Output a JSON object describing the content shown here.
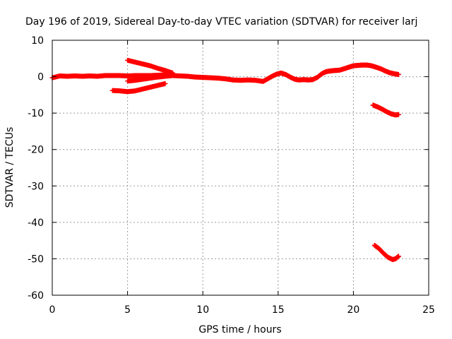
{
  "chart_data": {
    "type": "scatter",
    "title": "Day 196 of 2019, Sidereal Day-to-day VTEC variation (SDTVAR) for receiver larj",
    "xlabel": "GPS time / hours",
    "ylabel": "SDTVAR / TECUs",
    "xlim": [
      0,
      25
    ],
    "ylim": [
      -60,
      10
    ],
    "xticks": [
      0,
      5,
      10,
      15,
      20,
      25
    ],
    "yticks": [
      10,
      0,
      -10,
      -20,
      -30,
      -40,
      -50,
      -60
    ],
    "grid": true,
    "marker": "+",
    "color": "#ff0000",
    "series": [
      {
        "x": [
          0.0,
          0.5,
          1.0,
          1.5,
          2.0,
          2.5,
          3.0,
          3.5,
          4.0,
          4.5,
          5.0,
          5.5,
          6.0,
          6.5,
          7.0,
          7.5,
          8.0,
          8.5,
          9.0,
          9.5,
          10.0,
          10.5,
          11.0,
          11.5,
          12.0,
          12.5,
          13.0,
          13.5,
          14.0,
          14.3,
          14.6,
          14.9,
          15.2,
          15.5,
          15.8,
          16.1,
          16.4,
          16.7,
          17.0,
          17.3,
          17.6,
          17.9,
          18.2,
          18.5,
          18.8,
          19.1,
          19.4,
          19.7,
          20.0,
          20.3,
          20.6,
          20.9,
          21.2,
          21.5,
          21.8,
          22.1,
          22.4,
          22.7,
          23.0
        ],
        "y": [
          -0.3,
          0.2,
          0.1,
          0.2,
          0.1,
          0.2,
          0.1,
          0.3,
          0.3,
          0.3,
          0.2,
          0.3,
          0.3,
          0.3,
          0.4,
          0.5,
          0.3,
          0.2,
          0.1,
          -0.1,
          -0.2,
          -0.3,
          -0.4,
          -0.6,
          -0.9,
          -1.0,
          -0.9,
          -1.0,
          -1.3,
          -0.6,
          0.1,
          0.7,
          1.0,
          0.6,
          -0.1,
          -0.7,
          -0.9,
          -0.8,
          -0.9,
          -0.8,
          -0.2,
          0.8,
          1.4,
          1.6,
          1.7,
          1.8,
          2.2,
          2.6,
          3.0,
          3.1,
          3.2,
          3.2,
          3.0,
          2.6,
          2.2,
          1.6,
          1.1,
          0.8,
          0.6
        ]
      },
      {
        "x": [
          5.0,
          5.5,
          6.0,
          6.5,
          7.0,
          7.5,
          8.0
        ],
        "y": [
          4.5,
          4.0,
          3.5,
          3.0,
          2.3,
          1.7,
          1.0
        ]
      },
      {
        "x": [
          4.0,
          4.5,
          5.0,
          5.5,
          6.0,
          6.5,
          7.0,
          7.5
        ],
        "y": [
          -3.8,
          -3.9,
          -4.1,
          -3.9,
          -3.4,
          -2.9,
          -2.4,
          -1.9
        ]
      },
      {
        "x": [
          5.0,
          5.5,
          6.0,
          6.5,
          7.0,
          7.5,
          8.0
        ],
        "y": [
          -1.2,
          -1.0,
          -0.7,
          -0.4,
          -0.1,
          0.1,
          0.3
        ]
      },
      {
        "x": [
          21.3,
          21.6,
          21.9,
          22.2,
          22.5,
          22.8,
          23.0
        ],
        "y": [
          -7.8,
          -8.3,
          -8.9,
          -9.6,
          -10.2,
          -10.5,
          -10.4
        ]
      },
      {
        "x": [
          21.4,
          21.7,
          22.0,
          22.3,
          22.6,
          22.8,
          23.0
        ],
        "y": [
          -46.3,
          -47.2,
          -48.5,
          -49.6,
          -50.2,
          -50.0,
          -49.3
        ]
      }
    ]
  }
}
